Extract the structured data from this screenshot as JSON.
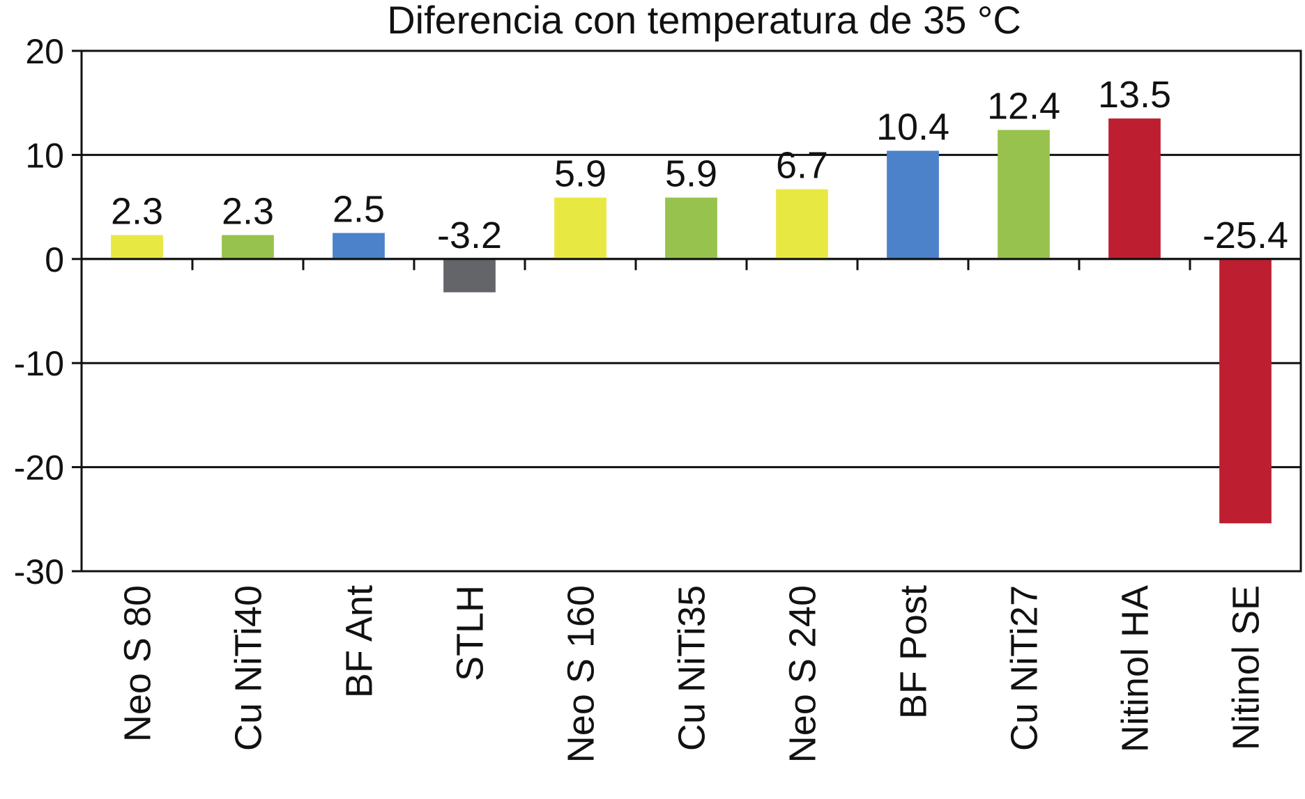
{
  "chart_data": {
    "type": "bar",
    "title": "Diferencia con temperatura de 35 °C",
    "xlabel": "",
    "ylabel": "",
    "ylim": [
      -30,
      20
    ],
    "yticks": [
      20,
      10,
      0,
      -10,
      -20,
      -30
    ],
    "ytick_labels": [
      "20",
      "10",
      "0",
      "-10",
      "-20",
      "-30"
    ],
    "grid": true,
    "categories": [
      "Neo S 80",
      "Cu NiTi40",
      "BF Ant",
      "STLH",
      "Neo S 160",
      "Cu NiTi35",
      "Neo S 240",
      "BF Post",
      "Cu NiTi27",
      "Nitinol HA",
      "Nitinol SE"
    ],
    "values": [
      2.3,
      2.3,
      2.5,
      -3.2,
      5.9,
      5.9,
      6.7,
      10.4,
      12.4,
      13.5,
      -25.4
    ],
    "value_labels": [
      "2.3",
      "2.3",
      "2.5",
      "-3.2",
      "5.9",
      "5.9",
      "6.7",
      "10.4",
      "12.4",
      "13.5",
      "-25.4"
    ],
    "colors": [
      "#e8e842",
      "#97c24d",
      "#4b82c9",
      "#636569",
      "#e8e842",
      "#97c24d",
      "#e8e842",
      "#4b82c9",
      "#97c24d",
      "#bd1f31",
      "#bd1f31"
    ]
  }
}
